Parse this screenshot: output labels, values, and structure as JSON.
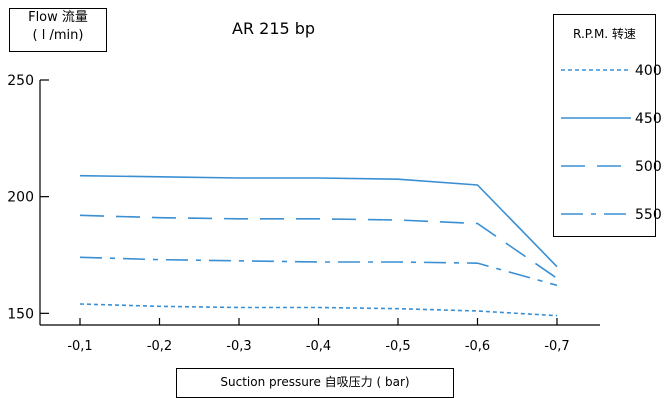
{
  "chart_data": {
    "type": "line",
    "title": "AR 215 bp",
    "ylabel_lines": [
      "Flow 流量",
      "( l /min)"
    ],
    "xlabel": "Suction pressure 自吸压力 ( bar)",
    "x": [
      "-0,1",
      "-0,2",
      "-0,3",
      "-0,4",
      "-0,5",
      "-0,6",
      "-0,7"
    ],
    "ylim": [
      145,
      250
    ],
    "yticks": [
      "250",
      "200",
      "150"
    ],
    "ytick_values": [
      250,
      200,
      150
    ],
    "legend_title": "R.P.M. 转速",
    "legend_position": "top-right",
    "grid": false,
    "series": [
      {
        "name": "400",
        "values": [
          154,
          153,
          152.5,
          152.5,
          152,
          151,
          149
        ],
        "dash": "4 3"
      },
      {
        "name": "450",
        "values": [
          209,
          208.5,
          208,
          208,
          207.5,
          205,
          170
        ],
        "dash": "none"
      },
      {
        "name": "500",
        "values": [
          192,
          191,
          190.5,
          190.5,
          190,
          188.5,
          165
        ],
        "dash": "24 12"
      },
      {
        "name": "550",
        "values": [
          174,
          173,
          172.5,
          172,
          172,
          171.5,
          162
        ],
        "dash": "22 8 5 8"
      }
    ]
  }
}
